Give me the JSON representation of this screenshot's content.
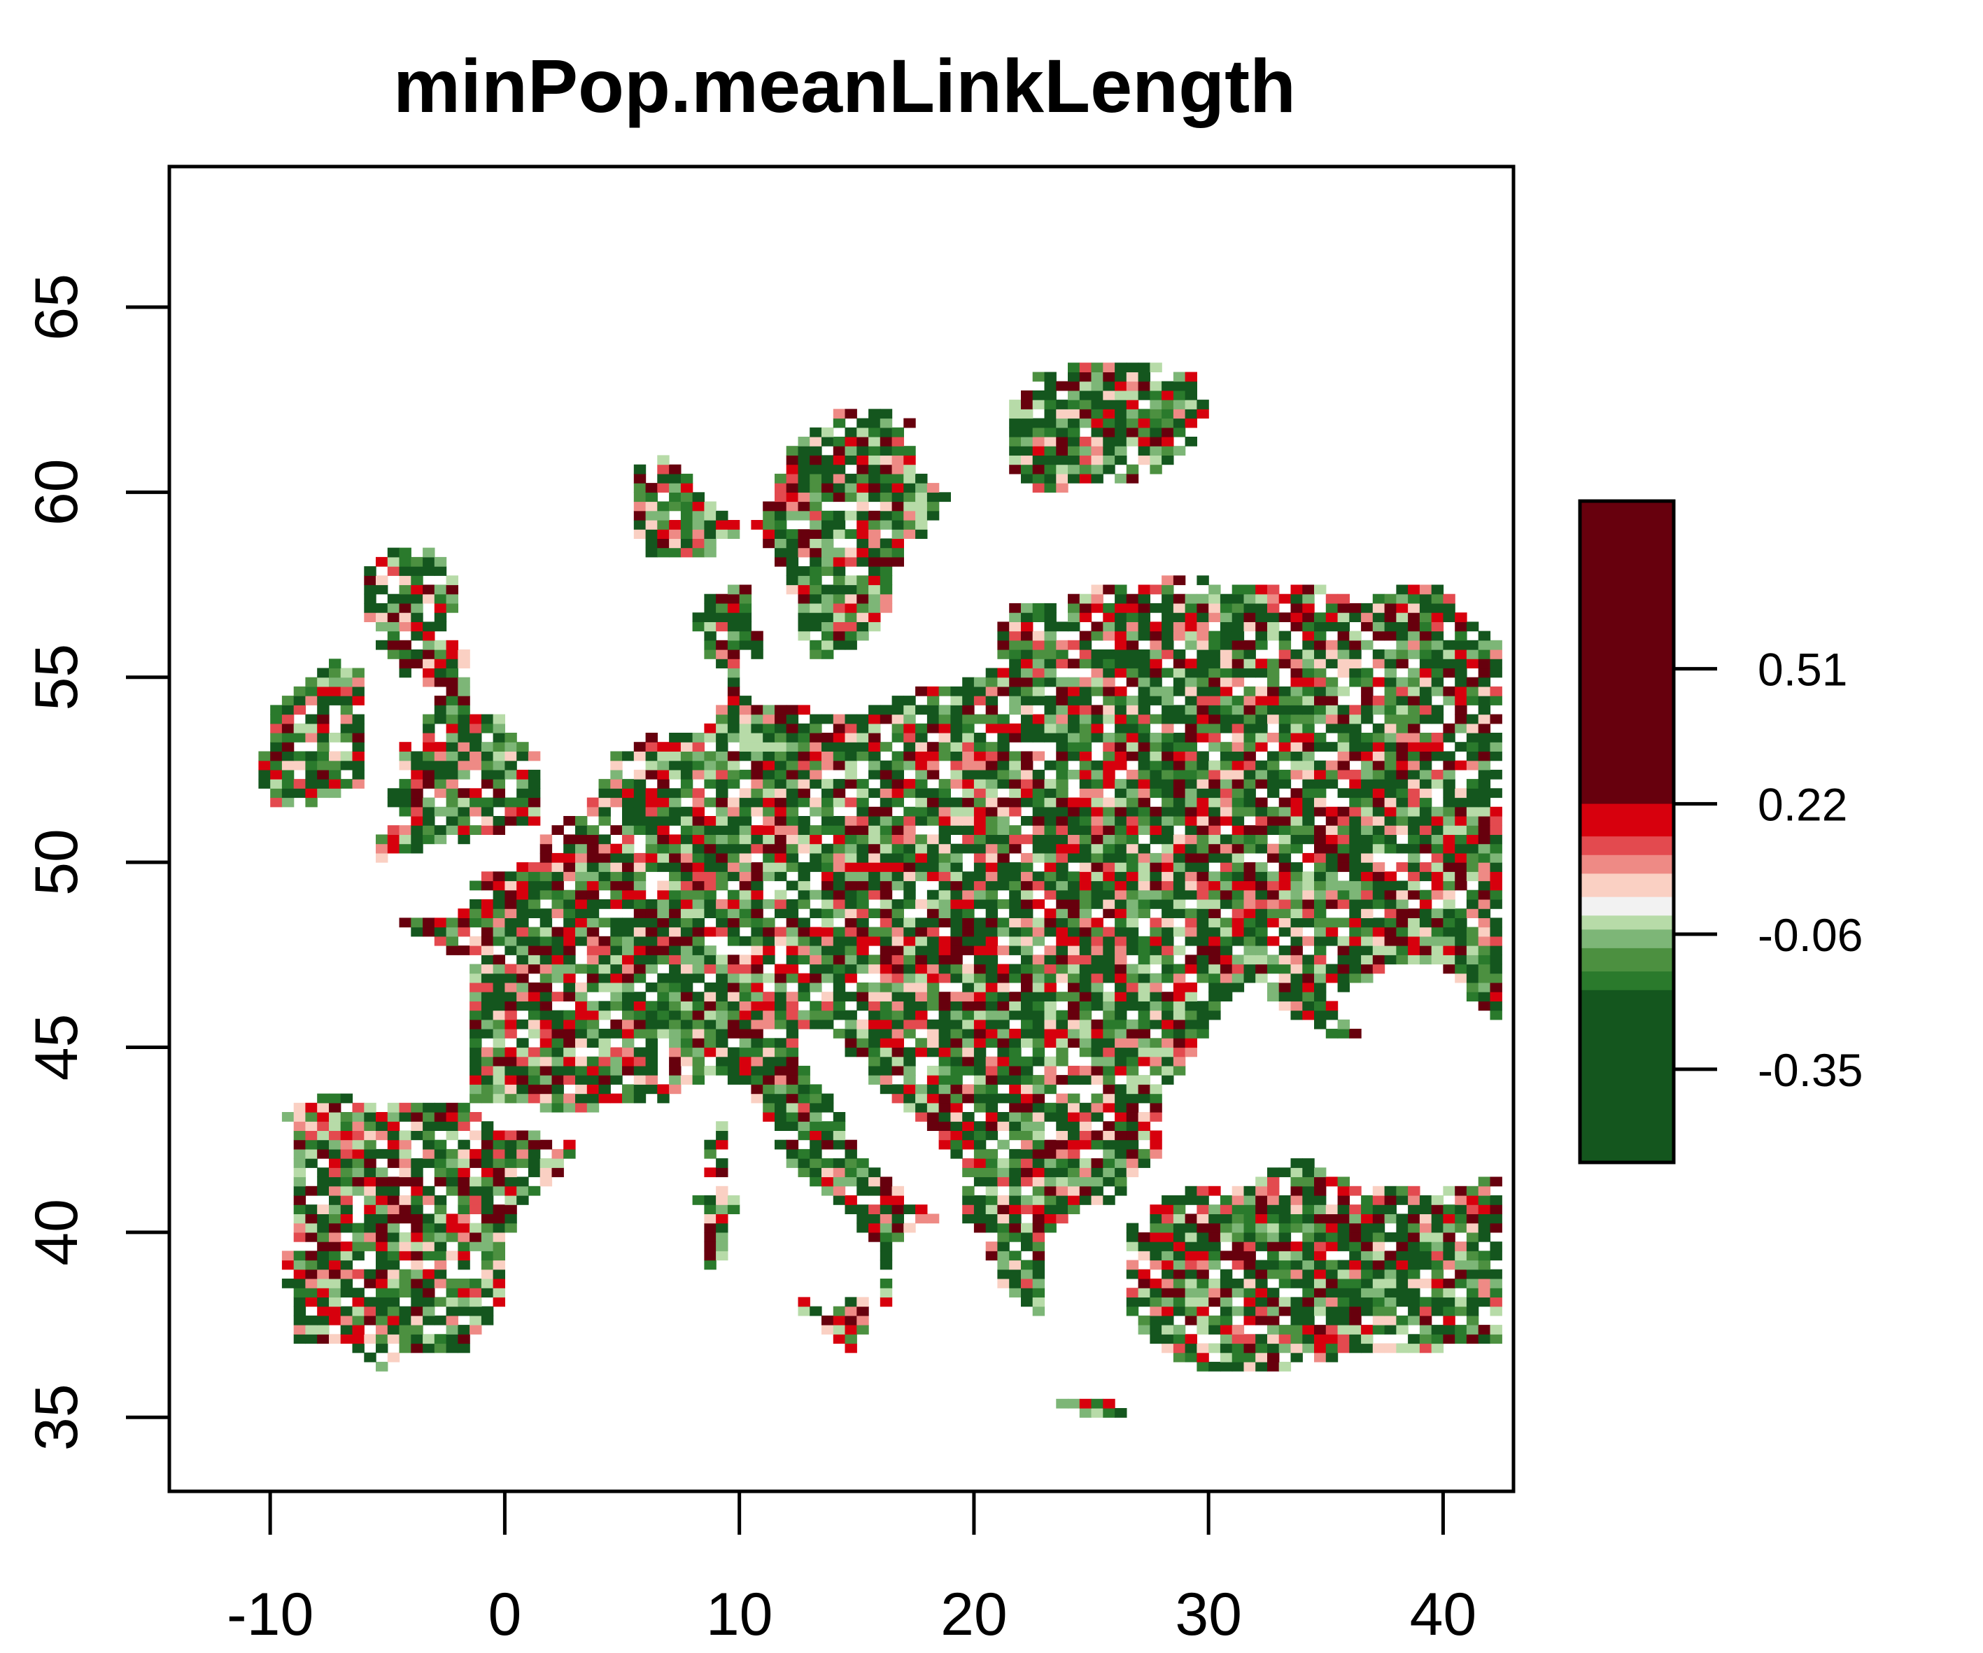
{
  "chart_data": {
    "type": "heatmap",
    "title": "minPop.meanLinkLength",
    "xlabel": "",
    "ylabel": "",
    "xlim": [
      -14.3,
      43.0
    ],
    "ylim": [
      33.0,
      68.8
    ],
    "x_ticks": [
      -10,
      0,
      10,
      20,
      30,
      40
    ],
    "y_ticks": [
      35,
      40,
      45,
      50,
      55,
      60,
      65
    ],
    "x_tick_labels": [
      "-10",
      "0",
      "10",
      "20",
      "30",
      "40"
    ],
    "y_tick_labels": [
      "35",
      "40",
      "45",
      "50",
      "55",
      "60",
      "65"
    ],
    "legend": {
      "placement": "right",
      "range": [
        -0.55,
        0.87
      ],
      "ticks": [
        0.51,
        0.22,
        -0.06,
        -0.35
      ],
      "tick_labels": [
        "0.51",
        "0.22",
        "-0.06",
        "-0.35"
      ],
      "bands": [
        {
          "from": 0.22,
          "to": 0.87,
          "color": "#67000d"
        },
        {
          "from": 0.15,
          "to": 0.22,
          "color": "#d7000d"
        },
        {
          "from": 0.11,
          "to": 0.15,
          "color": "#e34a4f"
        },
        {
          "from": 0.07,
          "to": 0.11,
          "color": "#ee8a85"
        },
        {
          "from": 0.02,
          "to": 0.07,
          "color": "#fad0c3"
        },
        {
          "from": -0.02,
          "to": 0.02,
          "color": "#f2f2f2"
        },
        {
          "from": -0.05,
          "to": -0.02,
          "color": "#b7dba8"
        },
        {
          "from": -0.09,
          "to": -0.05,
          "color": "#7db677"
        },
        {
          "from": -0.14,
          "to": -0.09,
          "color": "#4c9040"
        },
        {
          "from": -0.18,
          "to": -0.14,
          "color": "#2a7a2c"
        },
        {
          "from": -0.55,
          "to": -0.18,
          "color": "#14561e"
        }
      ]
    },
    "cell_size_deg": [
      0.5,
      0.25
    ],
    "grid": false
  }
}
